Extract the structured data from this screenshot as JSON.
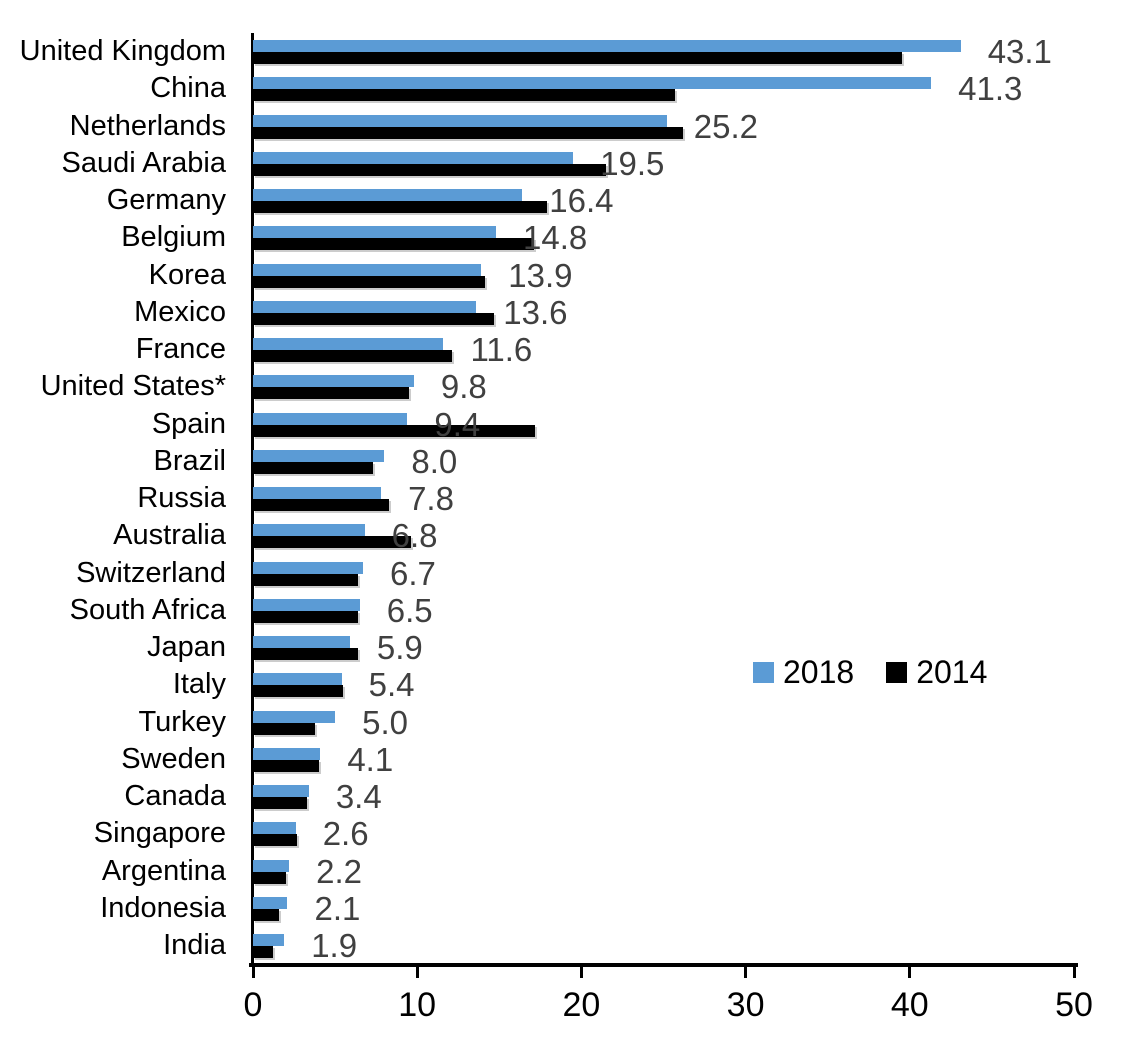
{
  "chart_data": {
    "type": "bar",
    "orientation": "horizontal",
    "categories": [
      "United Kingdom",
      "China",
      "Netherlands",
      "Saudi Arabia",
      "Germany",
      "Belgium",
      "Korea",
      "Mexico",
      "France",
      "United States*",
      "Spain",
      "Brazil",
      "Russia",
      "Australia",
      "Switzerland",
      "South Africa",
      "Japan",
      "Italy",
      "Turkey",
      "Sweden",
      "Canada",
      "Singapore",
      "Argentina",
      "Indonesia",
      "India"
    ],
    "series": [
      {
        "name": "2018",
        "color": "#5B9BD5",
        "values": [
          43.1,
          41.3,
          25.2,
          19.5,
          16.4,
          14.8,
          13.9,
          13.6,
          11.6,
          9.8,
          9.4,
          8.0,
          7.8,
          6.8,
          6.7,
          6.5,
          5.9,
          5.4,
          5.0,
          4.1,
          3.4,
          2.6,
          2.2,
          2.1,
          1.9
        ]
      },
      {
        "name": "2014",
        "color": "#000000",
        "values": [
          39.5,
          25.7,
          26.2,
          21.5,
          17.9,
          17.1,
          14.1,
          14.7,
          12.1,
          9.5,
          17.2,
          7.3,
          8.3,
          9.6,
          6.4,
          6.4,
          6.4,
          5.5,
          3.8,
          4.0,
          3.3,
          2.7,
          2.0,
          1.6,
          1.2
        ]
      }
    ],
    "data_labels": {
      "series": "2018",
      "color": "#404040",
      "values": [
        "43.1",
        "41.3",
        "25.2",
        "19.5",
        "16.4",
        "14.8",
        "13.9",
        "13.6",
        "11.6",
        "9.8",
        "9.4",
        "8.0",
        "7.8",
        "6.8",
        "6.7",
        "6.5",
        "5.9",
        "5.4",
        "5.0",
        "4.1",
        "3.4",
        "2.6",
        "2.2",
        "2.1",
        "1.9"
      ]
    },
    "xlim": [
      0,
      50
    ],
    "x_ticks": [
      "0",
      "10",
      "20",
      "30",
      "40",
      "50"
    ],
    "grid": false,
    "legend": {
      "position": "middle-right",
      "entries": [
        {
          "label": "2018",
          "color": "#5B9BD5"
        },
        {
          "label": "2014",
          "color": "#000000"
        }
      ]
    }
  }
}
